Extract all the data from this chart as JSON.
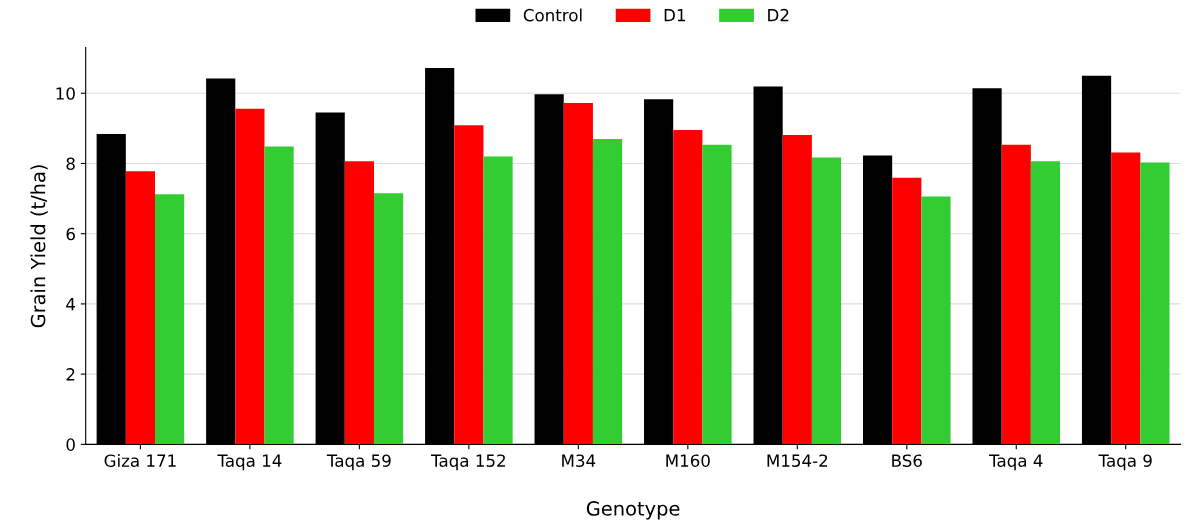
{
  "chart_data": {
    "type": "bar",
    "xlabel": "Genotype",
    "ylabel": "Grain Yield (t/ha)",
    "categories": [
      "Giza 171",
      "Taqa 14",
      "Taqa 59",
      "Taqa 152",
      "M34",
      "M160",
      "M154-2",
      "BS6",
      "Taqa 4",
      "Taqa 9"
    ],
    "series": [
      {
        "name": "Control",
        "color": "#000000",
        "values": [
          8.84,
          10.42,
          9.45,
          10.72,
          9.97,
          9.83,
          10.19,
          8.23,
          10.14,
          10.5
        ]
      },
      {
        "name": "D1",
        "color": "#ff0000",
        "values": [
          7.78,
          9.56,
          8.06,
          9.09,
          9.72,
          8.95,
          8.81,
          7.59,
          8.53,
          8.31
        ]
      },
      {
        "name": "D2",
        "color": "#33cc33",
        "values": [
          7.12,
          8.48,
          7.15,
          8.2,
          8.7,
          8.53,
          8.17,
          7.06,
          8.06,
          8.03
        ]
      }
    ],
    "ylim": [
      0,
      11.3
    ],
    "yticks": [
      0,
      2,
      4,
      6,
      8,
      10
    ],
    "grid": "y",
    "legend": "top"
  }
}
